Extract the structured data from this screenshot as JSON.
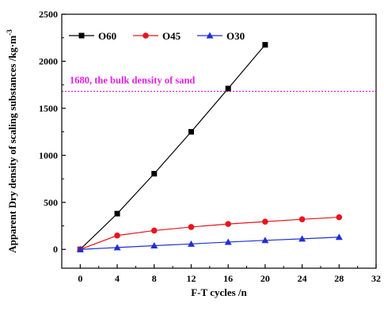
{
  "chart_data": {
    "type": "line",
    "x_label": "F-T cycles /n",
    "y_label": "Apparent Dry density of scaling substances /kg·m",
    "y_label_superscript": "-3",
    "x_range": [
      -2,
      32
    ],
    "y_range": [
      -200,
      2500
    ],
    "x_ticks": [
      0,
      4,
      8,
      12,
      16,
      20,
      24,
      28,
      32
    ],
    "y_ticks": [
      0,
      500,
      1000,
      1500,
      2000,
      2500
    ],
    "x_tick_labels": [
      "0",
      "4",
      "8",
      "12",
      "16",
      "20",
      "24",
      "28",
      "32"
    ],
    "y_tick_labels": [
      "0",
      "500",
      "1000",
      "1500",
      "2000",
      "2500"
    ],
    "legend_position": "top-left",
    "grid": false,
    "series": [
      {
        "name": "O60",
        "color": "#000000",
        "marker": "square",
        "x": [
          0,
          4,
          8,
          12,
          16,
          20
        ],
        "y": [
          0,
          380,
          805,
          1250,
          1710,
          2175
        ]
      },
      {
        "name": "O45",
        "color": "#e8141e",
        "marker": "circle",
        "x": [
          0,
          4,
          8,
          12,
          16,
          20,
          24,
          28
        ],
        "y": [
          0,
          148,
          200,
          238,
          270,
          295,
          320,
          342
        ]
      },
      {
        "name": "O30",
        "color": "#1f2fd6",
        "marker": "triangle",
        "x": [
          0,
          4,
          8,
          12,
          16,
          20,
          24,
          28
        ],
        "y": [
          0,
          20,
          40,
          58,
          78,
          96,
          112,
          130
        ]
      }
    ],
    "reference_line": {
      "value": 1680,
      "label": "1680, the bulk density of sand",
      "color": "#e020e0",
      "style": "dotted"
    }
  }
}
